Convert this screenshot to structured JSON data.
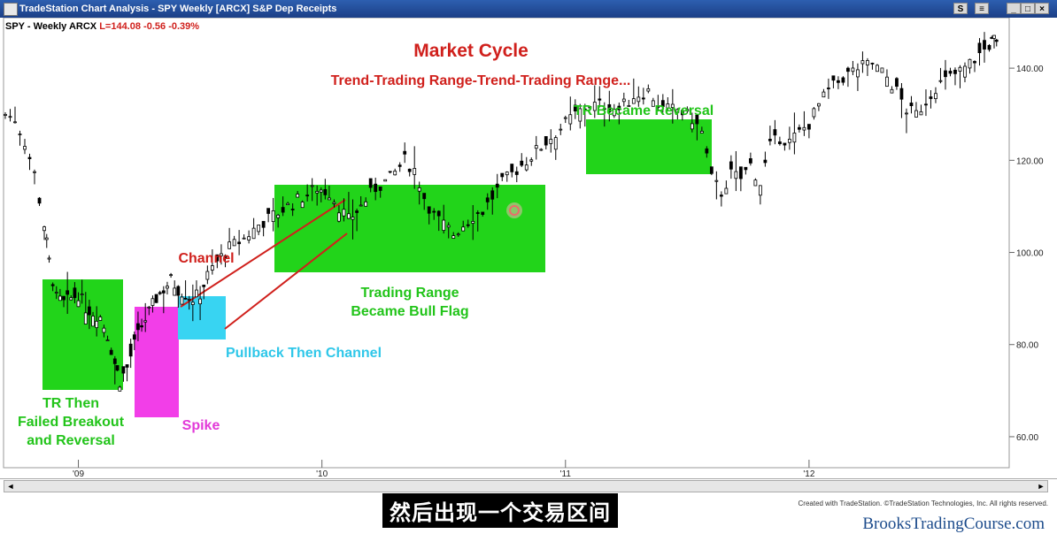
{
  "window": {
    "title": "TradeStation Chart Analysis - SPY Weekly [ARCX] S&P Dep Receipts",
    "buttons": [
      "S",
      "≡",
      "_",
      "□",
      "×"
    ]
  },
  "header": {
    "symbol": "SPY - Weekly  ARCX",
    "last": "L=144.08",
    "change": "-0.56",
    "pct": "-0.39%"
  },
  "chart_data": {
    "type": "candlestick",
    "title": "Market Cycle",
    "subtitle": "Trend-Trading Range-Trend-Trading Range...",
    "x_ticks": [
      "'09",
      "'10",
      "'11",
      "'12"
    ],
    "y_ticks": [
      "60.00",
      "80.00",
      "100.00",
      "120.00",
      "140.00"
    ],
    "ylim": [
      55,
      150
    ],
    "series": [
      {
        "values": [
          [
            2008.7,
            130
          ],
          [
            2008.74,
            129
          ],
          [
            2008.78,
            124
          ],
          [
            2008.82,
            117
          ],
          [
            2008.86,
            106
          ],
          [
            2008.88,
            98
          ],
          [
            2008.91,
            90
          ],
          [
            2008.94,
            89
          ],
          [
            2008.97,
            90
          ],
          [
            2009.0,
            91
          ],
          [
            2009.03,
            88
          ],
          [
            2009.06,
            87
          ],
          [
            2009.09,
            86
          ],
          [
            2009.12,
            82
          ],
          [
            2009.15,
            76
          ],
          [
            2009.17,
            72
          ],
          [
            2009.2,
            75
          ],
          [
            2009.23,
            80
          ],
          [
            2009.26,
            84
          ],
          [
            2009.29,
            87
          ],
          [
            2009.32,
            90
          ],
          [
            2009.35,
            92
          ],
          [
            2009.38,
            94
          ],
          [
            2009.41,
            92
          ],
          [
            2009.44,
            91
          ],
          [
            2009.47,
            90
          ],
          [
            2009.5,
            91
          ],
          [
            2009.53,
            95
          ],
          [
            2009.57,
            98
          ],
          [
            2009.62,
            101
          ],
          [
            2009.68,
            103
          ],
          [
            2009.74,
            106
          ],
          [
            2009.8,
            108
          ],
          [
            2009.86,
            110
          ],
          [
            2009.92,
            112
          ],
          [
            2009.98,
            114
          ],
          [
            2010.03,
            113
          ],
          [
            2010.07,
            110
          ],
          [
            2010.11,
            107
          ],
          [
            2010.16,
            110
          ],
          [
            2010.22,
            114
          ],
          [
            2010.28,
            116
          ],
          [
            2010.34,
            120
          ],
          [
            2010.38,
            118
          ],
          [
            2010.42,
            112
          ],
          [
            2010.46,
            108
          ],
          [
            2010.5,
            106
          ],
          [
            2010.54,
            104
          ],
          [
            2010.58,
            106
          ],
          [
            2010.62,
            108
          ],
          [
            2010.66,
            109
          ],
          [
            2010.7,
            112
          ],
          [
            2010.74,
            115
          ],
          [
            2010.78,
            117
          ],
          [
            2010.82,
            119
          ],
          [
            2010.86,
            121
          ],
          [
            2010.92,
            124
          ],
          [
            2010.98,
            127
          ],
          [
            2011.04,
            130
          ],
          [
            2011.1,
            132
          ],
          [
            2011.16,
            132
          ],
          [
            2011.22,
            131
          ],
          [
            2011.28,
            134
          ],
          [
            2011.34,
            135
          ],
          [
            2011.4,
            131
          ],
          [
            2011.46,
            131
          ],
          [
            2011.52,
            129
          ],
          [
            2011.56,
            126
          ],
          [
            2011.6,
            116
          ],
          [
            2011.64,
            113
          ],
          [
            2011.68,
            117
          ],
          [
            2011.72,
            116
          ],
          [
            2011.76,
            119
          ],
          [
            2011.8,
            115
          ],
          [
            2011.84,
            123
          ],
          [
            2011.88,
            125
          ],
          [
            2011.92,
            124
          ],
          [
            2011.96,
            126
          ],
          [
            2012.0,
            128
          ],
          [
            2012.04,
            132
          ],
          [
            2012.08,
            135
          ],
          [
            2012.14,
            138
          ],
          [
            2012.2,
            140
          ],
          [
            2012.26,
            141
          ],
          [
            2012.32,
            138
          ],
          [
            2012.36,
            135
          ],
          [
            2012.4,
            131
          ],
          [
            2012.44,
            130
          ],
          [
            2012.48,
            133
          ],
          [
            2012.52,
            136
          ],
          [
            2012.58,
            138
          ],
          [
            2012.64,
            140
          ],
          [
            2012.7,
            143
          ],
          [
            2012.74,
            145
          ],
          [
            2012.76,
            146
          ],
          [
            2012.78,
            144
          ]
        ]
      }
    ],
    "annotations": [
      {
        "label": "TR Then Failed Breakout and Reversal",
        "color": "#22c41a"
      },
      {
        "label": "Spike",
        "color": "#e23ad8"
      },
      {
        "label": "Pullback Then Channel",
        "color": "#2fc7e9"
      },
      {
        "label": "Channel",
        "color": "#d0201c"
      },
      {
        "label": "Trading Range Became Bull Flag",
        "color": "#22c41a"
      },
      {
        "label": "TR Became Reversal",
        "color": "#22c41a"
      }
    ]
  },
  "scroll": {
    "left_arrow": "◄",
    "right_arrow": "►"
  },
  "footer": {
    "created": "Created with TradeStation. ©TradeStation Technologies, Inc. All rights reserved.",
    "brand": "BrooksTradingCourse.com",
    "subtitle": "然后出现一个交易区间"
  }
}
